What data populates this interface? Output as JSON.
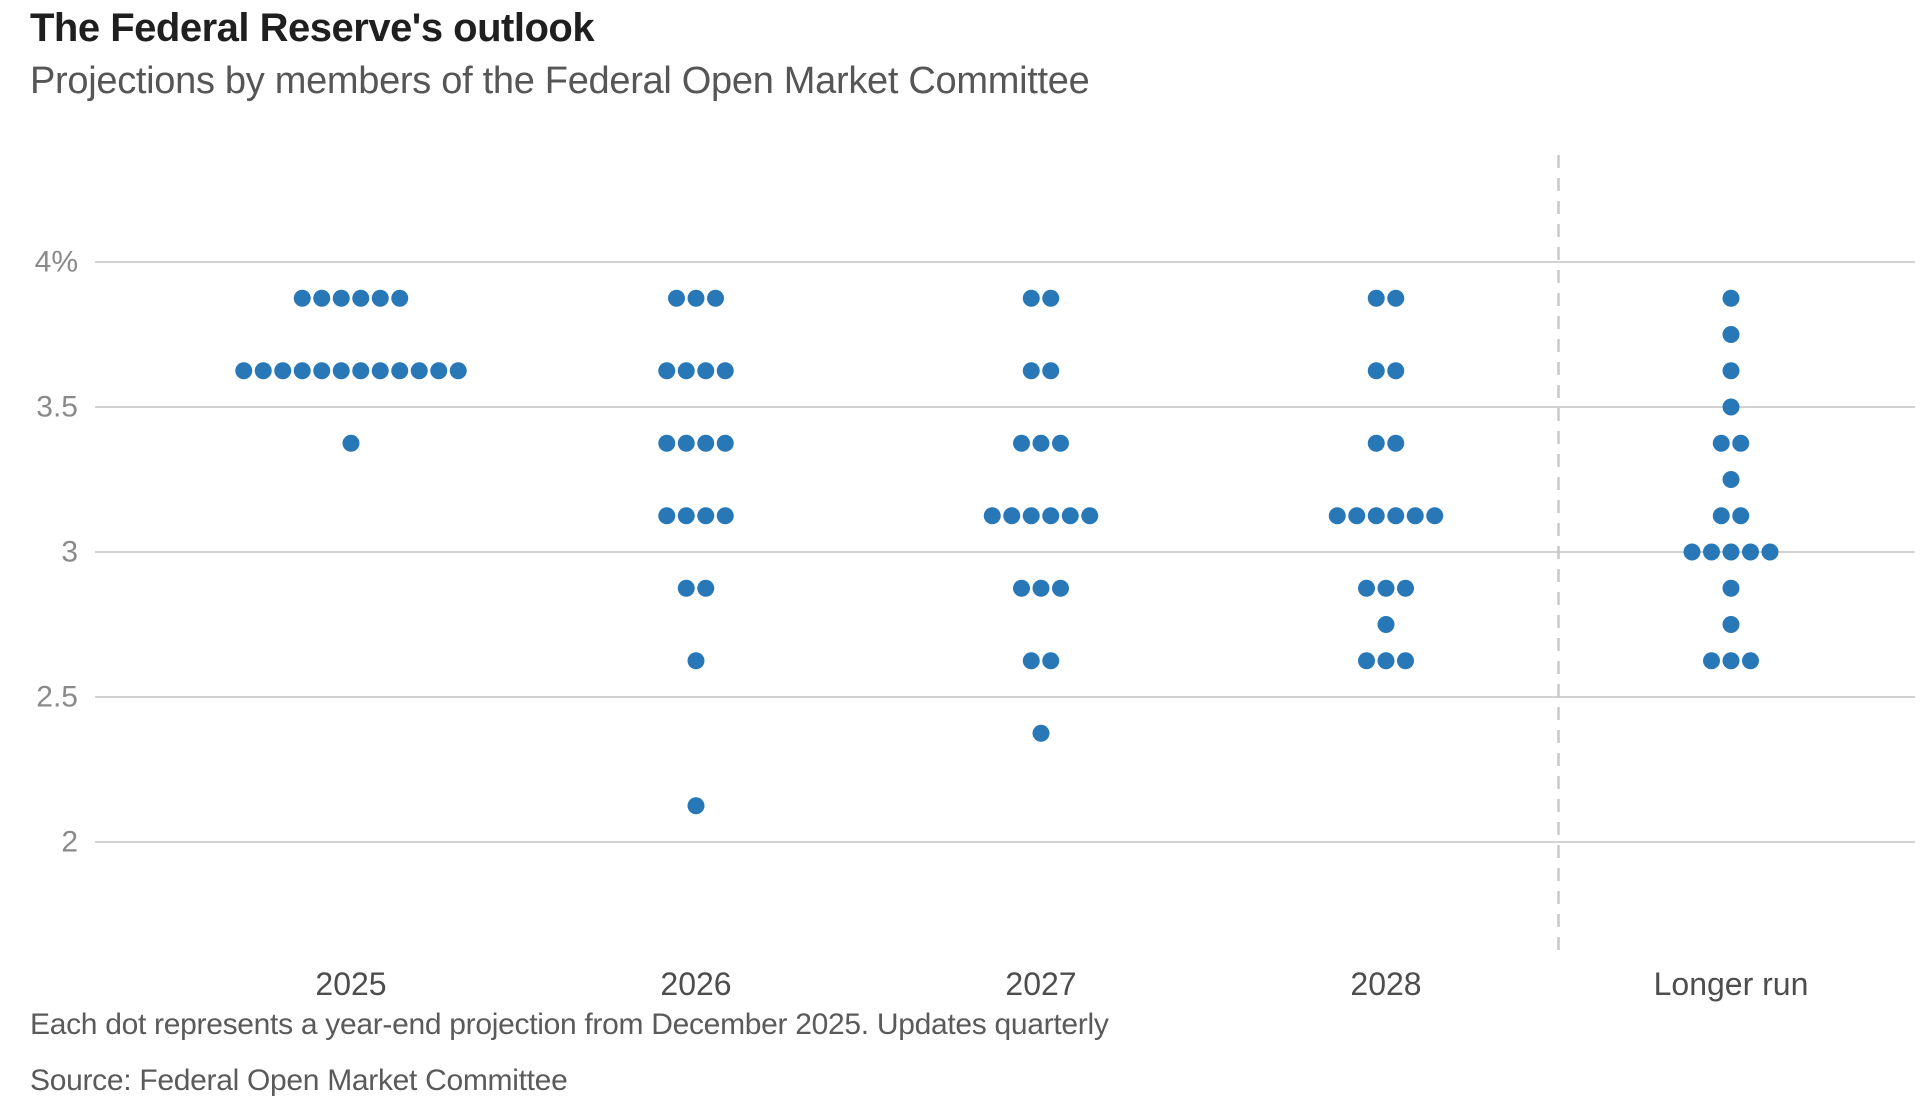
{
  "chart_data": {
    "type": "scatter",
    "variant": "fed-dot-plot",
    "title": "The Federal Reserve's outlook",
    "subtitle": "Projections by members of the Federal Open Market Committee",
    "footnote": "Each dot represents a year-end projection from December 2025. Updates quarterly",
    "source": "Source: Federal Open Market Committee",
    "categories": [
      "2025",
      "2026",
      "2027",
      "2028",
      "Longer run"
    ],
    "y_axis": {
      "ticks": [
        "4%",
        "3.5",
        "3",
        "2.5",
        "2"
      ],
      "tick_values": [
        4,
        3.5,
        3,
        2.5,
        2
      ],
      "min": 2,
      "max": 4,
      "grid": true,
      "unit": "percent"
    },
    "series": [
      {
        "category": "2025",
        "projections": [
          {
            "rate": 3.875,
            "count": 6
          },
          {
            "rate": 3.625,
            "count": 12
          },
          {
            "rate": 3.375,
            "count": 1
          }
        ]
      },
      {
        "category": "2026",
        "projections": [
          {
            "rate": 3.875,
            "count": 3
          },
          {
            "rate": 3.625,
            "count": 4
          },
          {
            "rate": 3.375,
            "count": 4
          },
          {
            "rate": 3.125,
            "count": 4
          },
          {
            "rate": 2.875,
            "count": 2
          },
          {
            "rate": 2.625,
            "count": 1
          },
          {
            "rate": 2.125,
            "count": 1
          }
        ]
      },
      {
        "category": "2027",
        "projections": [
          {
            "rate": 3.875,
            "count": 2
          },
          {
            "rate": 3.625,
            "count": 2
          },
          {
            "rate": 3.375,
            "count": 3
          },
          {
            "rate": 3.125,
            "count": 6
          },
          {
            "rate": 2.875,
            "count": 3
          },
          {
            "rate": 2.625,
            "count": 2
          },
          {
            "rate": 2.375,
            "count": 1
          }
        ]
      },
      {
        "category": "2028",
        "projections": [
          {
            "rate": 3.875,
            "count": 2
          },
          {
            "rate": 3.625,
            "count": 2
          },
          {
            "rate": 3.375,
            "count": 2
          },
          {
            "rate": 3.125,
            "count": 6
          },
          {
            "rate": 2.875,
            "count": 3
          },
          {
            "rate": 2.75,
            "count": 1
          },
          {
            "rate": 2.625,
            "count": 3
          }
        ]
      },
      {
        "category": "Longer run",
        "projections": [
          {
            "rate": 3.875,
            "count": 1
          },
          {
            "rate": 3.75,
            "count": 1
          },
          {
            "rate": 3.625,
            "count": 1
          },
          {
            "rate": 3.5,
            "count": 1
          },
          {
            "rate": 3.375,
            "count": 2
          },
          {
            "rate": 3.25,
            "count": 1
          },
          {
            "rate": 3.125,
            "count": 2
          },
          {
            "rate": 3.0,
            "count": 5
          },
          {
            "rate": 2.875,
            "count": 1
          },
          {
            "rate": 2.75,
            "count": 1
          },
          {
            "rate": 2.625,
            "count": 3
          }
        ]
      }
    ],
    "separator": {
      "between": [
        "2028",
        "Longer run"
      ],
      "style": "dashed"
    },
    "legend": "none",
    "colors": {
      "dot": "#2878B8",
      "grid": "#D2D2D2",
      "separator": "#C8C8C8",
      "y_label": "#8A8A8A",
      "x_label": "#4D4D4D"
    }
  }
}
